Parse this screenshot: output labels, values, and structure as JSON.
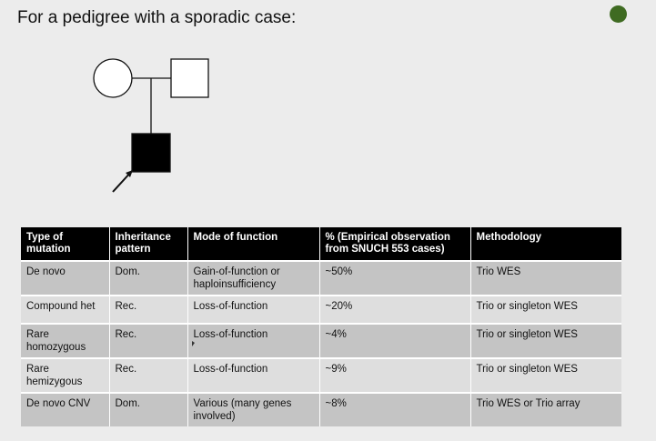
{
  "slide": {
    "title": "For a pedigree with a sporadic case:"
  },
  "colors": {
    "accent_dot": "#3f6b22",
    "header_bg": "#000000",
    "row_odd": "#c4c4c4",
    "row_even": "#dedede"
  },
  "table": {
    "headers": [
      "Type of mutation",
      "Inheritance pattern",
      "Mode of function",
      "% (Empirical observation from SNUCH 553 cases)",
      "Methodology"
    ],
    "rows": [
      [
        "De novo",
        "Dom.",
        "Gain-of-function or haploinsufficiency",
        "~50%",
        "Trio WES"
      ],
      [
        "Compound het",
        "Rec.",
        "Loss-of-function",
        "~20%",
        "Trio or singleton WES"
      ],
      [
        "Rare homozygous",
        "Rec.",
        "Loss-of-function",
        "~4%",
        "Trio or singleton WES"
      ],
      [
        "Rare hemizygous",
        "Rec.",
        "Loss-of-function",
        "~9%",
        "Trio or singleton WES"
      ],
      [
        "De novo CNV",
        "Dom.",
        "Various (many genes involved)",
        "~8%",
        "Trio WES or Trio array"
      ]
    ]
  }
}
